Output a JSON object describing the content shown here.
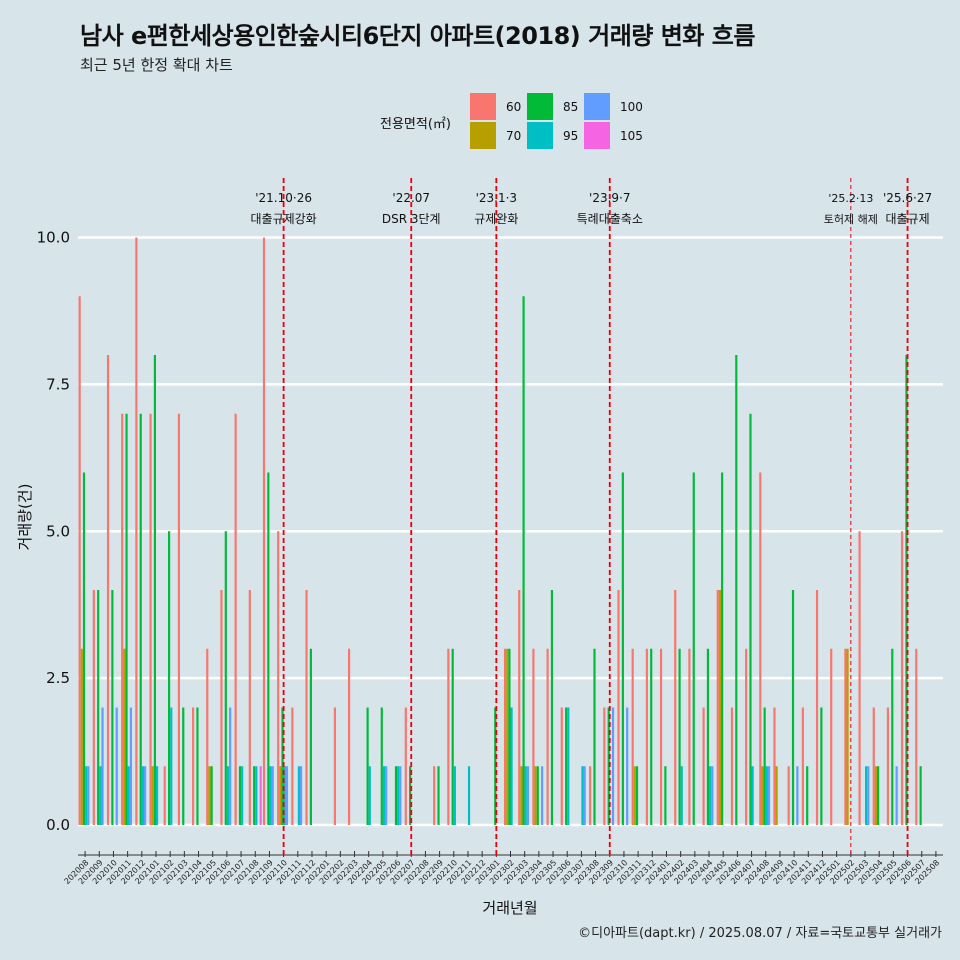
{
  "title": "남사 e편한세상용인한숲시티6단지 아파트(2018) 거래량 변화 흐름",
  "subtitle": "최근 5년 한정 확대 차트",
  "caption": "©디아파트(dapt.kr) / 2025.08.07 / 자료=국토교통부 실거래가",
  "chart_data": {
    "type": "bar",
    "xlabel": "거래년월",
    "ylabel": "거래량(건)",
    "ylim": [
      -0.4,
      11.0
    ],
    "yticks": [
      "0.0",
      "2.5",
      "5.0",
      "7.5",
      "10.0"
    ],
    "legend_title": "전용면적(㎡)",
    "legend_position": "top",
    "grid": true,
    "categories": [
      "202008",
      "202009",
      "202010",
      "202011",
      "202012",
      "202101",
      "202102",
      "202103",
      "202104",
      "202105",
      "202106",
      "202107",
      "202108",
      "202109",
      "202110",
      "202111",
      "202112",
      "202201",
      "202202",
      "202203",
      "202204",
      "202205",
      "202206",
      "202207",
      "202208",
      "202209",
      "202210",
      "202211",
      "202212",
      "202301",
      "202302",
      "202303",
      "202304",
      "202305",
      "202306",
      "202307",
      "202308",
      "202309",
      "202310",
      "202311",
      "202312",
      "202401",
      "202402",
      "202403",
      "202404",
      "202405",
      "202406",
      "202407",
      "202408",
      "202409",
      "202410",
      "202411",
      "202412",
      "202501",
      "202502",
      "202503",
      "202504",
      "202505",
      "202506",
      "202507",
      "202508"
    ],
    "series": [
      {
        "name": "60",
        "color": "#F8766D",
        "values": [
          9,
          4,
          8,
          7,
          10,
          7,
          1,
          7,
          2,
          3,
          4,
          7,
          4,
          10,
          5,
          2,
          4,
          0,
          2,
          3,
          0,
          0,
          0,
          2,
          0,
          1,
          3,
          0,
          0,
          0,
          3,
          4,
          3,
          3,
          2,
          0,
          1,
          2,
          4,
          3,
          3,
          3,
          4,
          3,
          2,
          4,
          2,
          3,
          6,
          2,
          1,
          2,
          4,
          3,
          3,
          5,
          2,
          2,
          5,
          3,
          0
        ]
      },
      {
        "name": "70",
        "color": "#B79F00",
        "values": [
          3,
          0,
          0,
          3,
          0,
          1,
          0,
          0,
          0,
          1,
          0,
          0,
          0,
          0,
          1,
          0,
          0,
          0,
          0,
          0,
          0,
          0,
          0,
          0,
          0,
          0,
          0,
          0,
          0,
          0,
          3,
          1,
          1,
          0,
          0,
          0,
          0,
          0,
          0,
          1,
          0,
          0,
          0,
          0,
          0,
          4,
          0,
          0,
          1,
          1,
          0,
          0,
          0,
          0,
          3,
          0,
          1,
          0,
          0,
          0,
          0
        ]
      },
      {
        "name": "85",
        "color": "#00BA38",
        "values": [
          6,
          4,
          4,
          7,
          7,
          8,
          5,
          2,
          2,
          1,
          5,
          1,
          1,
          6,
          2,
          0,
          3,
          0,
          0,
          0,
          2,
          2,
          1,
          1,
          0,
          1,
          3,
          0,
          0,
          2,
          3,
          9,
          1,
          4,
          2,
          0,
          3,
          2,
          6,
          1,
          3,
          1,
          3,
          6,
          3,
          6,
          8,
          7,
          2,
          0,
          4,
          1,
          2,
          0,
          0,
          0,
          1,
          3,
          8,
          1,
          0
        ]
      },
      {
        "name": "95",
        "color": "#00BFC4",
        "values": [
          1,
          1,
          0,
          1,
          1,
          1,
          2,
          0,
          0,
          0,
          1,
          1,
          1,
          1,
          1,
          1,
          0,
          0,
          0,
          0,
          1,
          1,
          1,
          0,
          0,
          0,
          1,
          1,
          0,
          0,
          2,
          1,
          0,
          0,
          2,
          1,
          0,
          0,
          0,
          0,
          0,
          0,
          1,
          0,
          1,
          0,
          0,
          1,
          1,
          0,
          0,
          0,
          0,
          0,
          0,
          1,
          0,
          0,
          0,
          0,
          0
        ]
      },
      {
        "name": "100",
        "color": "#619CFF",
        "values": [
          1,
          2,
          2,
          2,
          1,
          0,
          0,
          0,
          0,
          0,
          2,
          0,
          0,
          1,
          1,
          1,
          0,
          0,
          0,
          0,
          0,
          1,
          1,
          0,
          0,
          0,
          0,
          0,
          0,
          0,
          0,
          1,
          1,
          0,
          0,
          1,
          0,
          2,
          2,
          0,
          0,
          0,
          0,
          0,
          1,
          0,
          0,
          0,
          1,
          0,
          1,
          0,
          0,
          0,
          0,
          1,
          0,
          1,
          0,
          0,
          0
        ]
      },
      {
        "name": "105",
        "color": "#F564E3",
        "values": [
          0,
          0,
          0,
          0,
          0,
          0,
          0,
          0,
          0,
          0,
          0,
          0,
          1,
          0,
          0,
          0,
          0,
          0,
          0,
          0,
          0,
          0,
          0,
          0,
          0,
          0,
          0,
          0,
          0,
          0,
          0,
          0,
          0,
          0,
          0,
          0,
          0,
          0,
          0,
          0,
          0,
          0,
          0,
          0,
          0,
          0,
          0,
          0,
          0,
          0,
          0,
          0,
          0,
          0,
          0,
          0,
          0,
          0,
          0,
          0,
          0
        ]
      }
    ],
    "events": [
      {
        "date": "'21.10·26",
        "label": "대출규제강화",
        "at": "202110",
        "style": "dashed",
        "color": "#e8000b"
      },
      {
        "date": "'22.07",
        "label": "DSR 3단계",
        "at": "202207",
        "style": "dashed",
        "color": "#e8000b"
      },
      {
        "date": "'23.1·3",
        "label": "규제완화",
        "at": "202301",
        "style": "dashed",
        "color": "#e8000b"
      },
      {
        "date": "'23.9·7",
        "label": "특례대출축소",
        "at": "202309",
        "style": "dashed",
        "color": "#e8000b"
      },
      {
        "date": "'25.2·13",
        "label": "토허제 해제",
        "at": "202502",
        "style": "dashed-thin",
        "color": "#e8000b"
      },
      {
        "date": "'25.6·27",
        "label": "대출규제",
        "at": "202506",
        "style": "dashed",
        "color": "#e8000b"
      }
    ]
  }
}
